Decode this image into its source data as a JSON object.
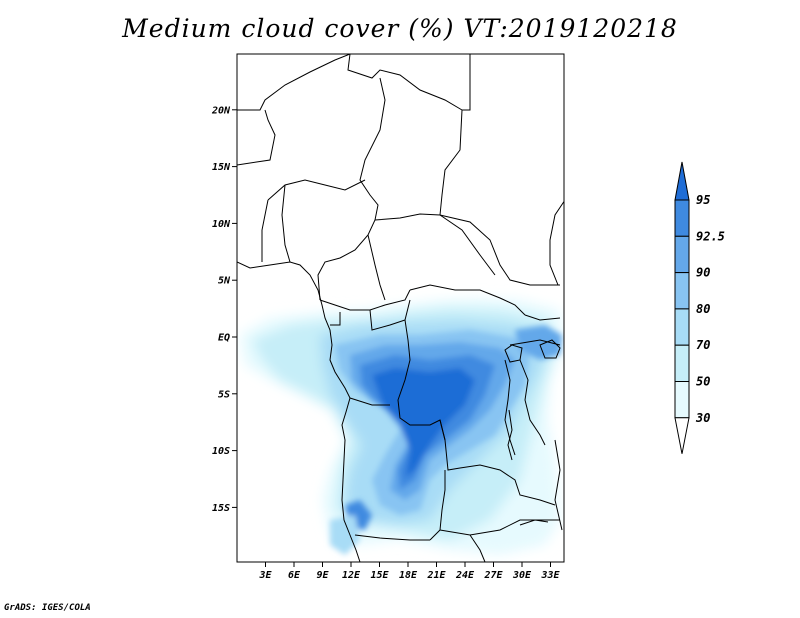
{
  "title": "Medium cloud cover (%) VT:2019120218",
  "credit": "GrADS: IGES/COLA",
  "map": {
    "lat_labels": [
      {
        "lat": 20,
        "label": "20N"
      },
      {
        "lat": 15,
        "label": "15N"
      },
      {
        "lat": 10,
        "label": "10N"
      },
      {
        "lat": 5,
        "label": "5N"
      },
      {
        "lat": 0,
        "label": "EQ"
      },
      {
        "lat": -5,
        "label": "5S"
      },
      {
        "lat": -10,
        "label": "10S"
      },
      {
        "lat": -15,
        "label": "15S"
      }
    ],
    "lon_labels": [
      {
        "lon": 3,
        "label": "3E"
      },
      {
        "lon": 6,
        "label": "6E"
      },
      {
        "lon": 9,
        "label": "9E"
      },
      {
        "lon": 12,
        "label": "12E"
      },
      {
        "lon": 15,
        "label": "15E"
      },
      {
        "lon": 18,
        "label": "18E"
      },
      {
        "lon": 21,
        "label": "21E"
      },
      {
        "lon": 24,
        "label": "24E"
      },
      {
        "lon": 27,
        "label": "27E"
      },
      {
        "lon": 30,
        "label": "30E"
      },
      {
        "lon": 33,
        "label": "33E"
      }
    ],
    "lon_range": [
      0,
      35
    ],
    "lat_range": [
      -20,
      25
    ]
  },
  "legend": {
    "levels": [
      {
        "label": "30",
        "color": "#e6fafe"
      },
      {
        "label": "50",
        "color": "#c6eef8"
      },
      {
        "label": "70",
        "color": "#a8dcf6"
      },
      {
        "label": "80",
        "color": "#88c4f2"
      },
      {
        "label": "90",
        "color": "#64a8ea"
      },
      {
        "label": "92.5",
        "color": "#3f8ae0"
      },
      {
        "label": "95",
        "color": "#1f6dd6"
      }
    ],
    "colors": {
      "below": "#ffffff",
      "above": "#1f6dd6"
    }
  }
}
